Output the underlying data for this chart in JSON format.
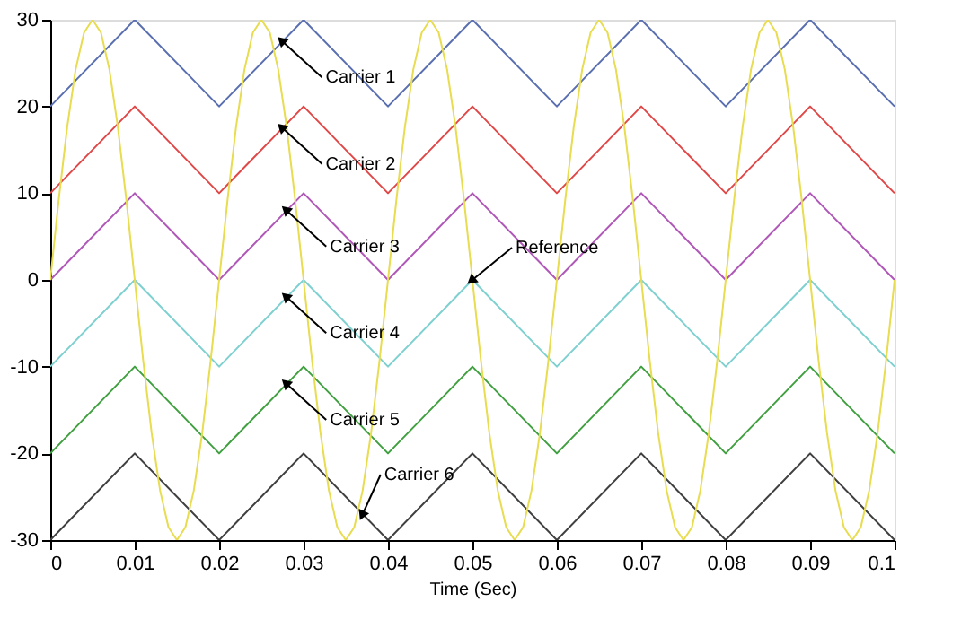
{
  "chart_data": {
    "type": "line",
    "xlabel": "Time (Sec)",
    "xlim": [
      0,
      0.1
    ],
    "xticks": [
      0,
      0.01,
      0.02,
      0.03,
      0.04,
      0.05,
      0.06,
      0.07,
      0.08,
      0.09,
      0.1
    ],
    "ylim": [
      -30,
      30
    ],
    "yticks": [
      -30,
      -20,
      -10,
      0,
      10,
      20,
      30
    ],
    "grid": false,
    "x": [
      0,
      0.01,
      0.02,
      0.03,
      0.04,
      0.05,
      0.06,
      0.07,
      0.08,
      0.09,
      0.1
    ],
    "series": [
      {
        "color": "#5a6fb0",
        "values": [
          20,
          30,
          20,
          30,
          20,
          30,
          20,
          30,
          20,
          30,
          20
        ]
      },
      {
        "color": "#e04848",
        "values": [
          10,
          20,
          10,
          20,
          10,
          20,
          10,
          20,
          10,
          20,
          10
        ]
      },
      {
        "color": "#b058b8",
        "values": [
          0,
          10,
          0,
          10,
          0,
          10,
          0,
          10,
          0,
          10,
          0
        ]
      },
      {
        "color": "#7fd0d0",
        "values": [
          -10,
          0,
          -10,
          0,
          -10,
          0,
          -10,
          0,
          -10,
          0,
          -10
        ]
      },
      {
        "color": "#40a040",
        "values": [
          -20,
          -10,
          -20,
          -10,
          -20,
          -10,
          -20,
          -10,
          -20,
          -10,
          -20
        ]
      },
      {
        "color": "#404040",
        "values": [
          -30,
          -20,
          -30,
          -20,
          -30,
          -20,
          -30,
          -20,
          -30,
          -20,
          -30
        ]
      },
      {
        "color": "#e8dc50",
        "x": [
          0,
          0.001,
          0.002,
          0.003,
          0.004,
          0.005,
          0.006,
          0.007,
          0.008,
          0.009,
          0.01,
          0.011,
          0.012,
          0.013,
          0.014,
          0.015,
          0.016,
          0.017,
          0.018,
          0.019,
          0.02,
          0.021,
          0.022,
          0.023,
          0.024,
          0.025,
          0.026,
          0.027,
          0.028,
          0.029,
          0.03,
          0.031,
          0.032,
          0.033,
          0.034,
          0.035,
          0.036,
          0.037,
          0.038,
          0.039,
          0.04,
          0.041,
          0.042,
          0.043,
          0.044,
          0.045,
          0.046,
          0.047,
          0.048,
          0.049,
          0.05,
          0.051,
          0.052,
          0.053,
          0.054,
          0.055,
          0.056,
          0.057,
          0.058,
          0.059,
          0.06,
          0.061,
          0.062,
          0.063,
          0.064,
          0.065,
          0.066,
          0.067,
          0.068,
          0.069,
          0.07,
          0.071,
          0.072,
          0.073,
          0.074,
          0.075,
          0.076,
          0.077,
          0.078,
          0.079,
          0.08,
          0.081,
          0.082,
          0.083,
          0.084,
          0.085,
          0.086,
          0.087,
          0.088,
          0.089,
          0.09,
          0.091,
          0.092,
          0.093,
          0.094,
          0.095,
          0.096,
          0.097,
          0.098,
          0.099,
          0.1
        ],
        "values": [
          0,
          9.27,
          17.63,
          24.27,
          28.53,
          30,
          28.53,
          24.27,
          17.63,
          9.27,
          0,
          -9.27,
          -17.63,
          -24.27,
          -28.53,
          -30,
          -28.53,
          -24.27,
          -17.63,
          -9.27,
          0,
          9.27,
          17.63,
          24.27,
          28.53,
          30,
          28.53,
          24.27,
          17.63,
          9.27,
          0,
          -9.27,
          -17.63,
          -24.27,
          -28.53,
          -30,
          -28.53,
          -24.27,
          -17.63,
          -9.27,
          0,
          9.27,
          17.63,
          24.27,
          28.53,
          30,
          28.53,
          24.27,
          17.63,
          9.27,
          0,
          -9.27,
          -17.63,
          -24.27,
          -28.53,
          -30,
          -28.53,
          -24.27,
          -17.63,
          -9.27,
          0,
          9.27,
          17.63,
          24.27,
          28.53,
          30,
          28.53,
          24.27,
          17.63,
          9.27,
          0,
          -9.27,
          -17.63,
          -24.27,
          -28.53,
          -30,
          -28.53,
          -24.27,
          -17.63,
          -9.27,
          0,
          9.27,
          17.63,
          24.27,
          28.53,
          30,
          28.53,
          24.27,
          17.63,
          9.27,
          0,
          -9.27,
          -17.63,
          -24.27,
          -28.53,
          -30,
          -28.53,
          -24.27,
          -17.63,
          -9.27,
          0
        ]
      }
    ],
    "annotations": [
      {
        "text": "Carrier 1",
        "x": 0.0275,
        "y": 27.5
      },
      {
        "text": "Carrier 2",
        "x": 0.0275,
        "y": 17.5
      },
      {
        "text": "Carrier 3",
        "x": 0.028,
        "y": 8
      },
      {
        "text": "Carrier 4",
        "x": 0.028,
        "y": -2
      },
      {
        "text": "Carrier 5",
        "x": 0.028,
        "y": -12
      },
      {
        "text": "Carrier 6",
        "x": 0.037,
        "y": -27
      },
      {
        "text": "Reference",
        "x": 0.05,
        "y": 0
      }
    ]
  }
}
